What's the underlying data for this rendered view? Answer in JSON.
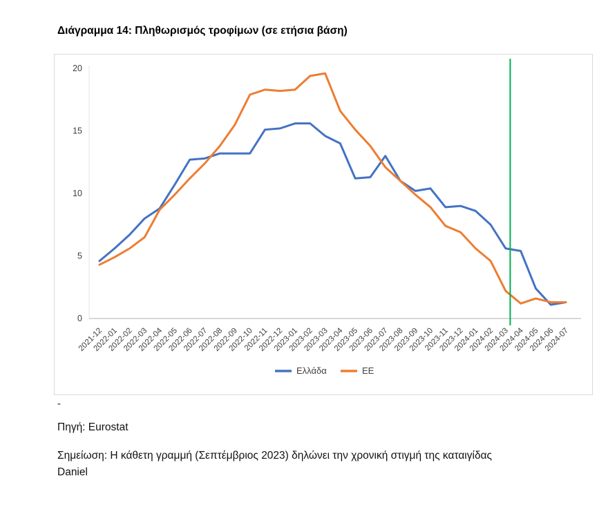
{
  "page": {
    "title": "Διάγραμμα 14: Πληθωρισμός τροφίμων (σε ετήσια βάση)",
    "dash": "-",
    "source": "Πηγή: Eurostat",
    "note": "Σημείωση: Η κάθετη γραμμή (Σεπτέμβριος 2023) δηλώνει την χρονική στιγμή της καταιγίδας Daniel"
  },
  "chart_data": {
    "type": "line",
    "title": "",
    "xlabel": "",
    "ylabel": "",
    "ylim": [
      0,
      20
    ],
    "yticks": [
      0,
      5,
      10,
      15,
      20
    ],
    "grid": false,
    "legend_position": "bottom",
    "categories": [
      "2021-12",
      "2022-01",
      "2022-02",
      "2022-03",
      "2022-04",
      "2022-05",
      "2022-06",
      "2022-07",
      "2022-08",
      "2022-09",
      "2022-10",
      "2022-11",
      "2022-12",
      "2023-01",
      "2023-02",
      "2023-03",
      "2023-04",
      "2023-05",
      "2023-06",
      "2023-07",
      "2023-08",
      "2023-09",
      "2023-10",
      "2023-11",
      "2023-12",
      "2024-01",
      "2024-02",
      "2024-03",
      "2024-04",
      "2024-05",
      "2024-06",
      "2024-07"
    ],
    "series": [
      {
        "name": "Ελλάδα",
        "color": "#4472C4",
        "values": [
          4.6,
          5.6,
          6.7,
          8.0,
          8.8,
          10.7,
          12.7,
          12.8,
          13.2,
          13.2,
          13.2,
          15.1,
          15.2,
          15.6,
          15.6,
          14.6,
          14.0,
          11.2,
          11.3,
          13.0,
          11.0,
          10.2,
          10.4,
          8.9,
          9.0,
          8.6,
          7.5,
          5.6,
          5.4,
          2.4,
          1.1,
          1.3
        ]
      },
      {
        "name": "ΕΕ",
        "color": "#ED7D31",
        "values": [
          4.3,
          4.9,
          5.6,
          6.5,
          8.7,
          9.9,
          11.2,
          12.4,
          13.8,
          15.5,
          17.9,
          18.3,
          18.2,
          18.3,
          19.4,
          19.6,
          16.6,
          15.1,
          13.8,
          12.1,
          11.0,
          9.9,
          8.9,
          7.4,
          6.9,
          5.6,
          4.6,
          2.2,
          1.2,
          1.6,
          1.3,
          1.3
        ]
      }
    ],
    "vline": {
      "index": 27.3,
      "color": "#00B050"
    },
    "axis_color": "#bfbfbf",
    "tick_label_color": "#404040"
  }
}
